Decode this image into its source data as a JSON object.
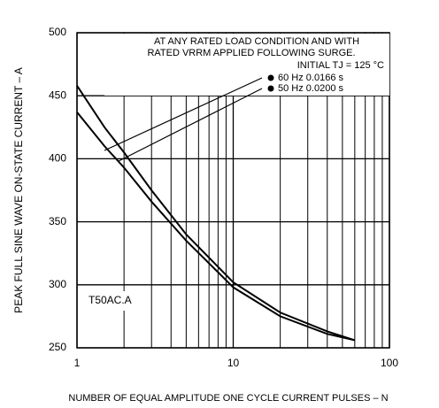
{
  "chart_data": {
    "type": "line",
    "xlabel": "NUMBER OF EQUAL AMPLITUDE ONE CYCLE CURRENT PULSES – N",
    "ylabel": "PEAK FULL SINE WAVE ON-STATE CURRENT – A",
    "annotations": [
      "AT ANY RATED LOAD CONDITION AND WITH",
      "RATED VRRM APPLIED FOLLOWING SURGE.",
      "INITIAL TJ = 125 °C",
      "T50AC.A"
    ],
    "x": [
      1,
      1.5,
      2,
      3,
      5,
      10,
      20,
      40,
      60
    ],
    "series": [
      {
        "name": "60 Hz 0.0166 s",
        "color": "#000000",
        "values": [
          458,
          425,
          405,
          375,
          340,
          302,
          278,
          263,
          256
        ]
      },
      {
        "name": "50 Hz 0.0200 s",
        "color": "#000000",
        "values": [
          437,
          410,
          393,
          366,
          335,
          298,
          275,
          261,
          256
        ]
      }
    ],
    "xlim": [
      1,
      100
    ],
    "xticks": [
      1,
      10,
      100
    ],
    "xscale": "log",
    "xminor_ticks": [
      2,
      3,
      4,
      5,
      6,
      7,
      8,
      9,
      20,
      30,
      40,
      50,
      60,
      70,
      80,
      90
    ],
    "ylim": [
      250,
      500
    ],
    "yticks": [
      250,
      300,
      350,
      400,
      450,
      500
    ],
    "grid": true
  }
}
